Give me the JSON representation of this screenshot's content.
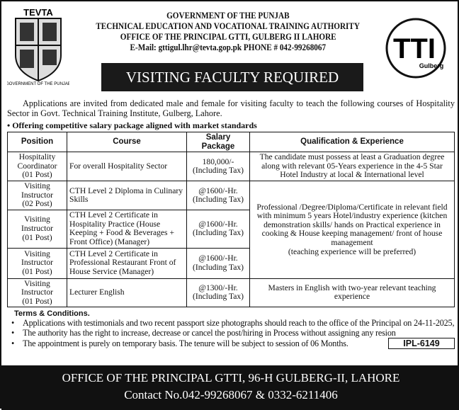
{
  "header": {
    "logo_left_text": "TEVTA",
    "logo_left_ring": "GOVERNMENT OF THE PUNJAB",
    "logo_right_text": "TTI",
    "logo_right_sub": "Gulberg",
    "line1": "GOVERNMENT OF THE PUNJAB",
    "line2": "TECHNICAL EDUCATION AND VOCATIONAL TRAINING AUTHORITY",
    "line3": "OFFICE OF THE PRINCIPAL GTTI, GULBERG II LAHORE",
    "email_label": "E-Mail:",
    "email": "gttigul.lhr@tevta.gop.pk",
    "phone": "PHONE # 042-99268067"
  },
  "title": "VISITING FACULTY REQUIRED",
  "intro": "Applications are invited from dedicated male and female for visiting faculty to teach the following courses of Hospitality Sector in Govt. Technical Training Institute, Gulberg, Lahore.",
  "offer": "Offering competitive salary package aligned with market standards",
  "table": {
    "headers": [
      "Position",
      "Course",
      "Salary Package",
      "Qualification & Experience"
    ],
    "rows": [
      {
        "position": [
          "Hospitality",
          "Coordinator",
          "(01 Post)"
        ],
        "course": "For overall Hospitality Sector",
        "salary": [
          "180,000/-",
          "(Including Tax)"
        ],
        "qual": "The candidate must possess at least a Graduation degree along with relevant 05-Years experience in the 4-5 Star Hotel Industry at local & International level"
      },
      {
        "position": [
          "Visiting",
          "Instructor",
          "(02 Post)"
        ],
        "course": "CTH Level 2 Diploma in Culinary Skills",
        "salary": [
          "@1600/-Hr.",
          "(Including Tax)"
        ]
      },
      {
        "position": [
          "Visiting",
          "Instructor",
          "(01 Post)"
        ],
        "course": "CTH Level 2 Certificate in Hospitality Practice (House Keeping + Food & Beverages + Front Office) (Manager)",
        "salary": [
          "@1600/-Hr.",
          "(Including Tax)"
        ]
      },
      {
        "position": [
          "Visiting",
          "Instructor",
          "(01 Post)"
        ],
        "course": "CTH Level 2 Certificate in Professional Restaurant Front of House Service (Manager)",
        "salary": [
          "@1600/-Hr.",
          "(Including Tax)"
        ]
      },
      {
        "position": [
          "Visiting",
          "Instructor",
          "(01 Post)"
        ],
        "course": "Lecturer English",
        "salary": [
          "@1300/-Hr.",
          "(Including Tax)"
        ],
        "qual": "Masters in English with two-year relevant teaching experience"
      }
    ],
    "shared_qual": "Professional /Degree/Diploma/Certificate in relevant field with minimum 5 years Hotel/industry experience (kitchen demonstration skills/ hands on Practical experience in cooking & House keeping management/ front of house management",
    "shared_qual_note": "(teaching experience will be preferred)"
  },
  "terms": {
    "title": "Terms & Conditions.",
    "items": [
      "Applications with testimonials and two recent passport size photographs should reach to the office of the Principal on 24-11-2025,",
      "The authority has the right to increase, decrease or cancel the post/hiring in Process without assigning any resion",
      "The appointment is purely on temporary basis. The tenure will be subject to session of 06 Months."
    ]
  },
  "ipl": "IPL-6149",
  "footer": {
    "line1": "OFFICE OF THE PRINCIPAL GTTI, 96-H GULBERG-II, LAHORE",
    "line2": "Contact No.042-99268067 & 0332-6211406"
  }
}
